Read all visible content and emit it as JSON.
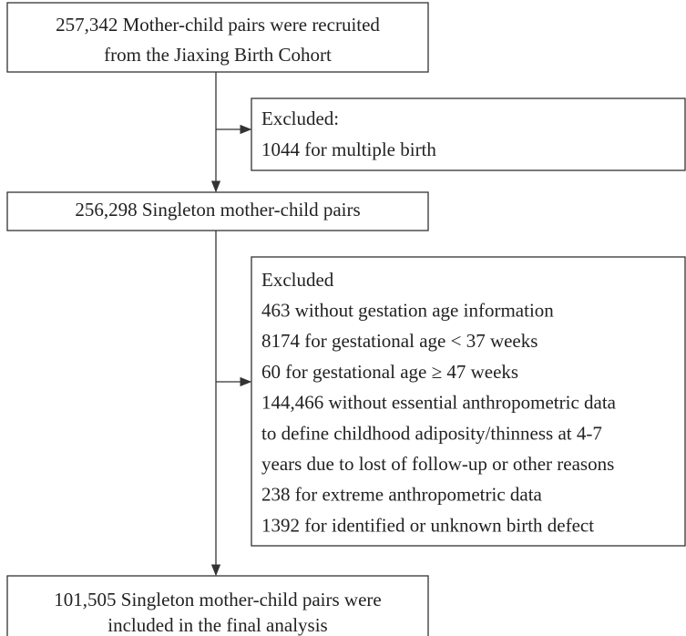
{
  "nodes": [
    {
      "lines": [
        "257,342 Mother-child pairs were recruited",
        "from the Jiaxing Birth Cohort"
      ]
    },
    {
      "lines": [
        "Excluded:",
        "1044 for multiple birth"
      ]
    },
    {
      "lines": [
        "256,298 Singleton mother-child pairs"
      ]
    },
    {
      "lines": [
        "Excluded",
        "463 without gestation age information",
        "8174 for gestational age < 37 weeks",
        "60 for gestational age ≥ 47 weeks",
        "144,466 without essential anthropometric data",
        "to define childhood adiposity/thinness at 4-7",
        "years due to lost of follow-up or other reasons",
        "238 for extreme anthropometric data",
        "1392 for identified or unknown birth defect"
      ]
    },
    {
      "lines": [
        "101,505 Singleton mother-child pairs were",
        "included in the final analysis"
      ]
    }
  ]
}
